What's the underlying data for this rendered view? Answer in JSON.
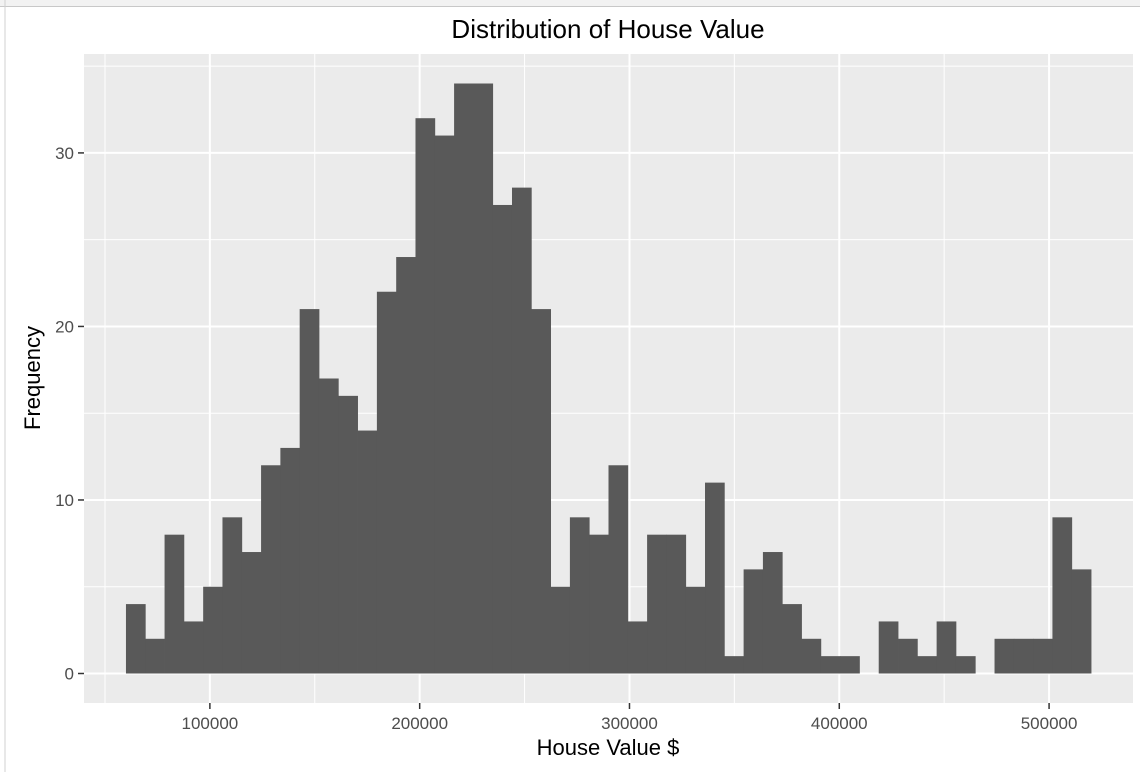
{
  "chart_data": {
    "type": "bar",
    "title": "Distribution of House Value",
    "xlabel": "House Value $",
    "ylabel": "Frequency",
    "xlim": [
      40000,
      540000
    ],
    "ylim": [
      -1.7,
      35.7
    ],
    "x_ticks": [
      100000,
      200000,
      300000,
      400000,
      500000
    ],
    "x_tick_labels": [
      "100000",
      "200000",
      "300000",
      "400000",
      "500000"
    ],
    "y_ticks": [
      0,
      10,
      20,
      30
    ],
    "y_tick_labels": [
      "0",
      "10",
      "20",
      "30"
    ],
    "bin_start": 60000,
    "bin_width": 9200,
    "values": [
      4,
      2,
      8,
      3,
      5,
      9,
      7,
      12,
      13,
      21,
      17,
      16,
      14,
      22,
      24,
      32,
      31,
      34,
      34,
      27,
      28,
      21,
      5,
      9,
      8,
      12,
      3,
      8,
      8,
      5,
      11,
      1,
      6,
      7,
      4,
      2,
      1,
      1,
      0,
      3,
      2,
      1,
      3,
      1,
      0,
      2,
      2,
      2,
      9,
      6
    ],
    "bar_color": "#595959",
    "panel_color": "#EBEBEB",
    "grid": true,
    "legend": "none"
  }
}
